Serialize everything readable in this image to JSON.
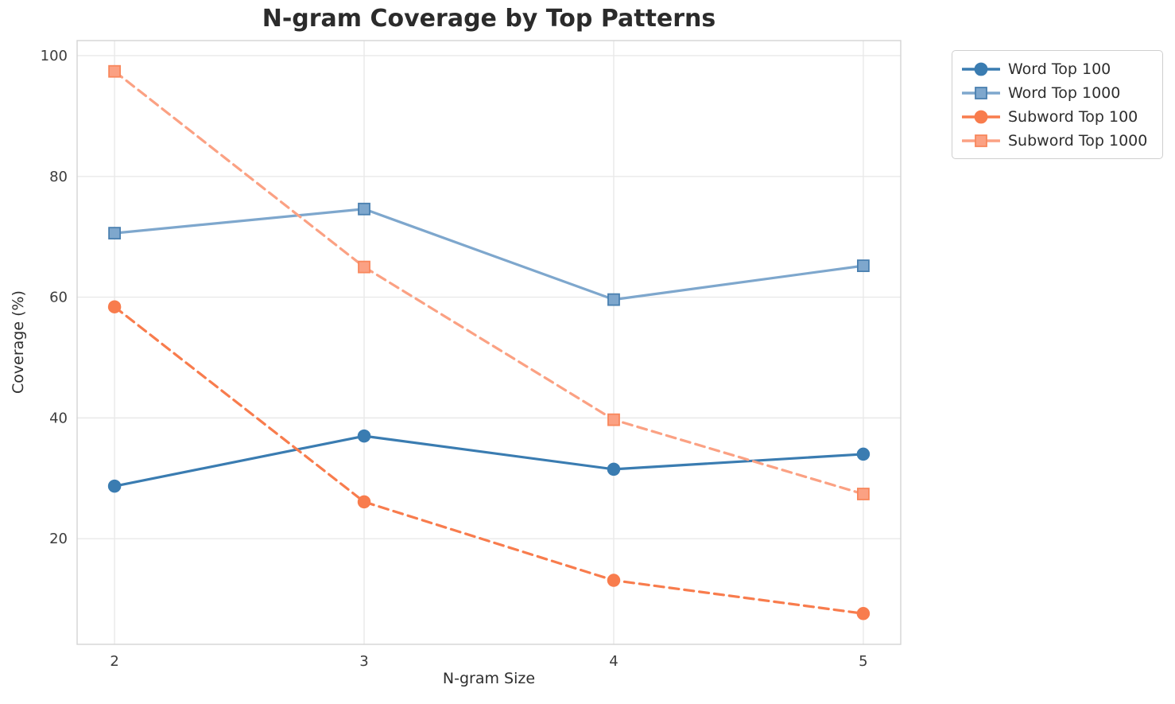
{
  "chart_data": {
    "type": "line",
    "title": "N-gram Coverage by Top Patterns",
    "xlabel": "N-gram Size",
    "ylabel": "Coverage (%)",
    "x": [
      2,
      3,
      4,
      5
    ],
    "x_tick_labels": [
      "2",
      "3",
      "4",
      "5"
    ],
    "y_ticks": [
      20,
      40,
      60,
      80,
      100
    ],
    "y_tick_labels": [
      "20",
      "40",
      "60",
      "80",
      "100"
    ],
    "xlim": [
      1.85,
      5.15
    ],
    "ylim": [
      2.5,
      102.5
    ],
    "grid": true,
    "legend_position": "upper right outside axes",
    "series": [
      {
        "name": "Word Top 100",
        "values": [
          28.7,
          37.0,
          31.5,
          34.0
        ],
        "color": "#3a7cb1",
        "marker_edge": "#3a7cb1",
        "marker": "circle",
        "linestyle": "solid"
      },
      {
        "name": "Word Top 1000",
        "values": [
          70.6,
          74.6,
          59.6,
          65.2
        ],
        "color": "#7ea7cd",
        "marker_edge": "#4a80b0",
        "marker": "square",
        "linestyle": "solid"
      },
      {
        "name": "Subword Top 100",
        "values": [
          58.4,
          26.1,
          13.1,
          7.6
        ],
        "color": "#f87c4d",
        "marker_edge": "#f87c4d",
        "marker": "circle",
        "linestyle": "dashed"
      },
      {
        "name": "Subword Top 1000",
        "values": [
          97.4,
          65.0,
          39.7,
          27.4
        ],
        "color": "#fba183",
        "marker_edge": "#f8875c",
        "marker": "square",
        "linestyle": "dashed"
      }
    ],
    "colors": {
      "background": "#ffffff",
      "grid": "#e9e9e9",
      "spine": "#d4d4d4",
      "title_text": "#2b2b2b",
      "tick_text": "#3c3c3c",
      "label_text": "#2e2e2e"
    }
  }
}
